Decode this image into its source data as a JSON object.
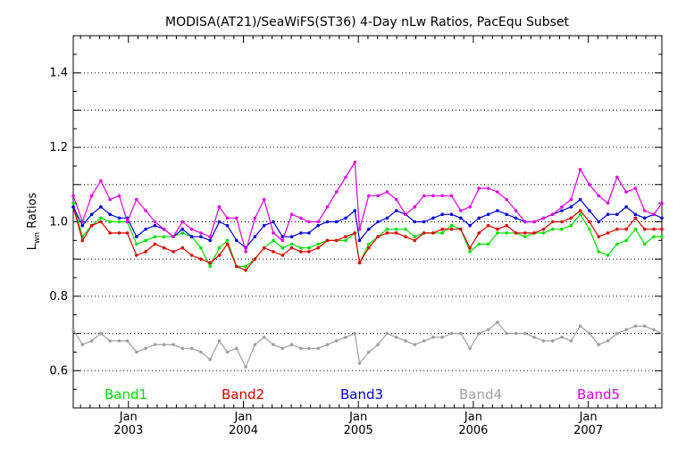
{
  "chart_data": {
    "type": "line",
    "title": "MODISA(AT21)/SeaWiFS(ST36) 4-Day nLw Ratios, PacEqu Subset",
    "ylabel": {
      "main": "L",
      "subscript": "wn",
      "rest": " Ratios"
    },
    "xlabel": "",
    "ylim": [
      0.5,
      1.5
    ],
    "yticks": [
      0.6,
      0.8,
      1.0,
      1.2,
      1.4
    ],
    "ytick_labels": [
      "0.6",
      "0.8",
      "1.0",
      "1.2",
      "1.4"
    ],
    "xlim": [
      2002.52,
      2007.64
    ],
    "xticks": [
      {
        "x": 2003.0,
        "month": "Jan",
        "year": "2003"
      },
      {
        "x": 2004.0,
        "month": "Jan",
        "year": "2004"
      },
      {
        "x": 2005.0,
        "month": "Jan",
        "year": "2005"
      },
      {
        "x": 2006.0,
        "month": "Jan",
        "year": "2006"
      },
      {
        "x": 2007.0,
        "month": "Jan",
        "year": "2007"
      }
    ],
    "grid": true,
    "legend_position": "bottom",
    "x": [
      2002.52,
      2002.6,
      2002.68,
      2002.76,
      2002.84,
      2002.92,
      2002.99,
      2003.07,
      2003.15,
      2003.23,
      2003.31,
      2003.39,
      2003.47,
      2003.55,
      2003.63,
      2003.71,
      2003.79,
      2003.86,
      2003.94,
      2004.02,
      2004.1,
      2004.18,
      2004.26,
      2004.34,
      2004.42,
      2004.5,
      2004.57,
      2004.65,
      2004.73,
      2004.81,
      2004.89,
      2004.97,
      2005.01,
      2005.09,
      2005.17,
      2005.25,
      2005.33,
      2005.41,
      2005.49,
      2005.57,
      2005.65,
      2005.73,
      2005.81,
      2005.89,
      2005.97,
      2006.05,
      2006.13,
      2006.21,
      2006.29,
      2006.37,
      2006.45,
      2006.53,
      2006.61,
      2006.69,
      2006.77,
      2006.85,
      2006.93,
      2007.01,
      2007.09,
      2007.17,
      2007.25,
      2007.33,
      2007.41,
      2007.49,
      2007.57,
      2007.64
    ],
    "series": [
      {
        "name": "Band1",
        "color": "#00e000",
        "values": [
          1.05,
          0.96,
          0.99,
          1.01,
          1.0,
          1.0,
          1.0,
          0.94,
          0.95,
          0.96,
          0.96,
          0.96,
          0.97,
          0.96,
          0.93,
          0.88,
          0.93,
          0.95,
          0.88,
          0.88,
          0.9,
          0.93,
          0.95,
          0.93,
          0.94,
          0.93,
          0.93,
          0.94,
          0.95,
          0.95,
          0.95,
          0.97,
          0.89,
          0.94,
          0.96,
          0.98,
          0.98,
          0.98,
          0.96,
          0.97,
          0.97,
          0.97,
          0.99,
          0.98,
          0.92,
          0.94,
          0.94,
          0.97,
          0.97,
          0.97,
          0.96,
          0.97,
          0.97,
          0.98,
          0.98,
          0.99,
          1.02,
          0.98,
          0.92,
          0.91,
          0.94,
          0.95,
          0.98,
          0.94,
          0.96,
          0.96
        ]
      },
      {
        "name": "Band2",
        "color": "#e00000",
        "values": [
          1.04,
          0.95,
          0.99,
          1.0,
          0.97,
          0.97,
          0.97,
          0.91,
          0.92,
          0.94,
          0.93,
          0.92,
          0.93,
          0.91,
          0.9,
          0.89,
          0.91,
          0.94,
          0.88,
          0.87,
          0.9,
          0.93,
          0.92,
          0.91,
          0.93,
          0.92,
          0.92,
          0.93,
          0.95,
          0.95,
          0.96,
          0.97,
          0.89,
          0.93,
          0.96,
          0.97,
          0.97,
          0.96,
          0.95,
          0.97,
          0.97,
          0.98,
          0.98,
          0.98,
          0.93,
          0.97,
          0.99,
          0.98,
          0.99,
          0.97,
          0.97,
          0.97,
          0.98,
          1.0,
          1.0,
          1.01,
          1.03,
          1.0,
          0.96,
          0.97,
          0.98,
          0.98,
          1.01,
          0.98,
          0.98,
          0.98
        ]
      },
      {
        "name": "Band3",
        "color": "#0000e0",
        "values": [
          1.04,
          0.99,
          1.02,
          1.04,
          1.02,
          1.01,
          1.01,
          0.96,
          0.98,
          0.99,
          0.98,
          0.96,
          0.98,
          0.96,
          0.96,
          0.95,
          1.0,
          0.99,
          0.95,
          0.93,
          0.96,
          0.99,
          1.0,
          0.96,
          0.96,
          0.97,
          0.97,
          0.99,
          1.0,
          1.0,
          1.01,
          1.03,
          0.95,
          0.98,
          1.0,
          1.01,
          1.03,
          1.02,
          1.0,
          1.0,
          1.01,
          1.02,
          1.02,
          1.01,
          0.99,
          1.01,
          1.02,
          1.03,
          1.02,
          1.01,
          1.0,
          1.0,
          1.01,
          1.02,
          1.03,
          1.04,
          1.06,
          1.03,
          1.0,
          1.02,
          1.02,
          1.04,
          1.02,
          1.01,
          1.02,
          1.01
        ]
      },
      {
        "name": "Band4",
        "color": "#a0a0a0",
        "values": [
          0.71,
          0.67,
          0.68,
          0.7,
          0.68,
          0.68,
          0.68,
          0.65,
          0.66,
          0.67,
          0.67,
          0.67,
          0.66,
          0.66,
          0.65,
          0.63,
          0.68,
          0.65,
          0.66,
          0.61,
          0.67,
          0.69,
          0.67,
          0.66,
          0.67,
          0.66,
          0.66,
          0.66,
          0.67,
          0.68,
          0.69,
          0.7,
          0.62,
          0.65,
          0.67,
          0.7,
          0.69,
          0.68,
          0.67,
          0.68,
          0.69,
          0.69,
          0.7,
          0.7,
          0.66,
          0.7,
          0.71,
          0.73,
          0.7,
          0.7,
          0.7,
          0.69,
          0.68,
          0.68,
          0.69,
          0.68,
          0.72,
          0.7,
          0.67,
          0.68,
          0.7,
          0.71,
          0.72,
          0.72,
          0.71,
          0.7
        ]
      },
      {
        "name": "Band5",
        "color": "#e000e0",
        "values": [
          1.07,
          1.0,
          1.07,
          1.11,
          1.06,
          1.07,
          1.0,
          1.06,
          1.03,
          1.0,
          0.98,
          0.96,
          1.0,
          0.98,
          0.97,
          0.96,
          1.04,
          1.01,
          1.01,
          0.92,
          1.01,
          1.06,
          0.97,
          0.95,
          1.02,
          1.01,
          1.0,
          1.0,
          1.04,
          1.08,
          1.12,
          1.16,
          0.98,
          1.07,
          1.07,
          1.08,
          1.06,
          1.02,
          1.04,
          1.07,
          1.07,
          1.07,
          1.07,
          1.03,
          1.04,
          1.09,
          1.09,
          1.08,
          1.06,
          1.03,
          1.0,
          1.0,
          1.01,
          1.02,
          1.04,
          1.06,
          1.14,
          1.1,
          1.07,
          1.05,
          1.12,
          1.08,
          1.09,
          1.03,
          1.02,
          1.05
        ]
      }
    ]
  }
}
